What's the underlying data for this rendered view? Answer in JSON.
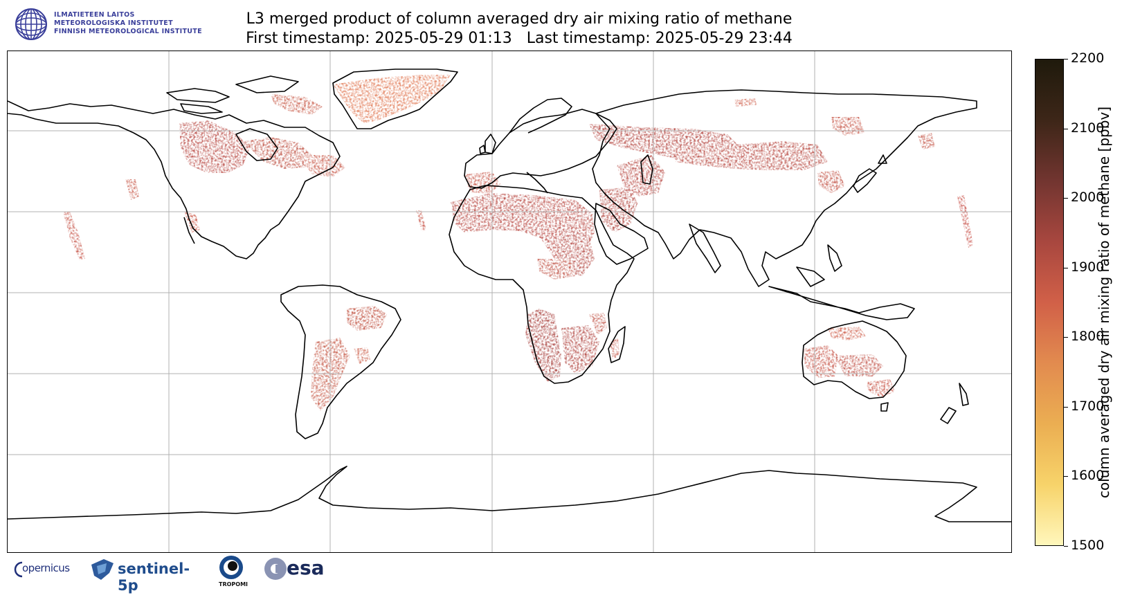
{
  "header": {
    "institute_lines": [
      "ILMATIETEEN LAITOS",
      "METEOROLOGISKA INSTITUTET",
      "FINNISH METEOROLOGICAL INSTITUTE"
    ],
    "title_line1": "L3 merged product of column averaged dry air mixing ratio of methane",
    "title_line2": "First timestamp: 2025-05-29 01:13   Last timestamp: 2025-05-29 23:44"
  },
  "colorbar": {
    "label": "column averaged dry air mixing ratio of methane [ppbv]",
    "min": 1500,
    "max": 2200,
    "ticks": [
      "1500",
      "1600",
      "1700",
      "1800",
      "1900",
      "2000",
      "2100",
      "2200"
    ],
    "colors": [
      "#fff7bc",
      "#f7d36a",
      "#ebae52",
      "#e28b4f",
      "#d16048",
      "#a8473f",
      "#723530",
      "#3d2618",
      "#1f1a0c"
    ]
  },
  "map": {
    "projection": "equirectangular",
    "grid": true,
    "lon_lines": [
      -120,
      -60,
      0,
      60,
      120
    ],
    "lat_lines": [
      60,
      30,
      0,
      -30,
      -60
    ],
    "coastline_color": "#000000",
    "no_data_color": "#ffffff"
  },
  "logos": {
    "copernicus": "opernicus",
    "sentinel": "sentinel-5p",
    "tropomi": "TROPOMI",
    "esa": "esa"
  }
}
